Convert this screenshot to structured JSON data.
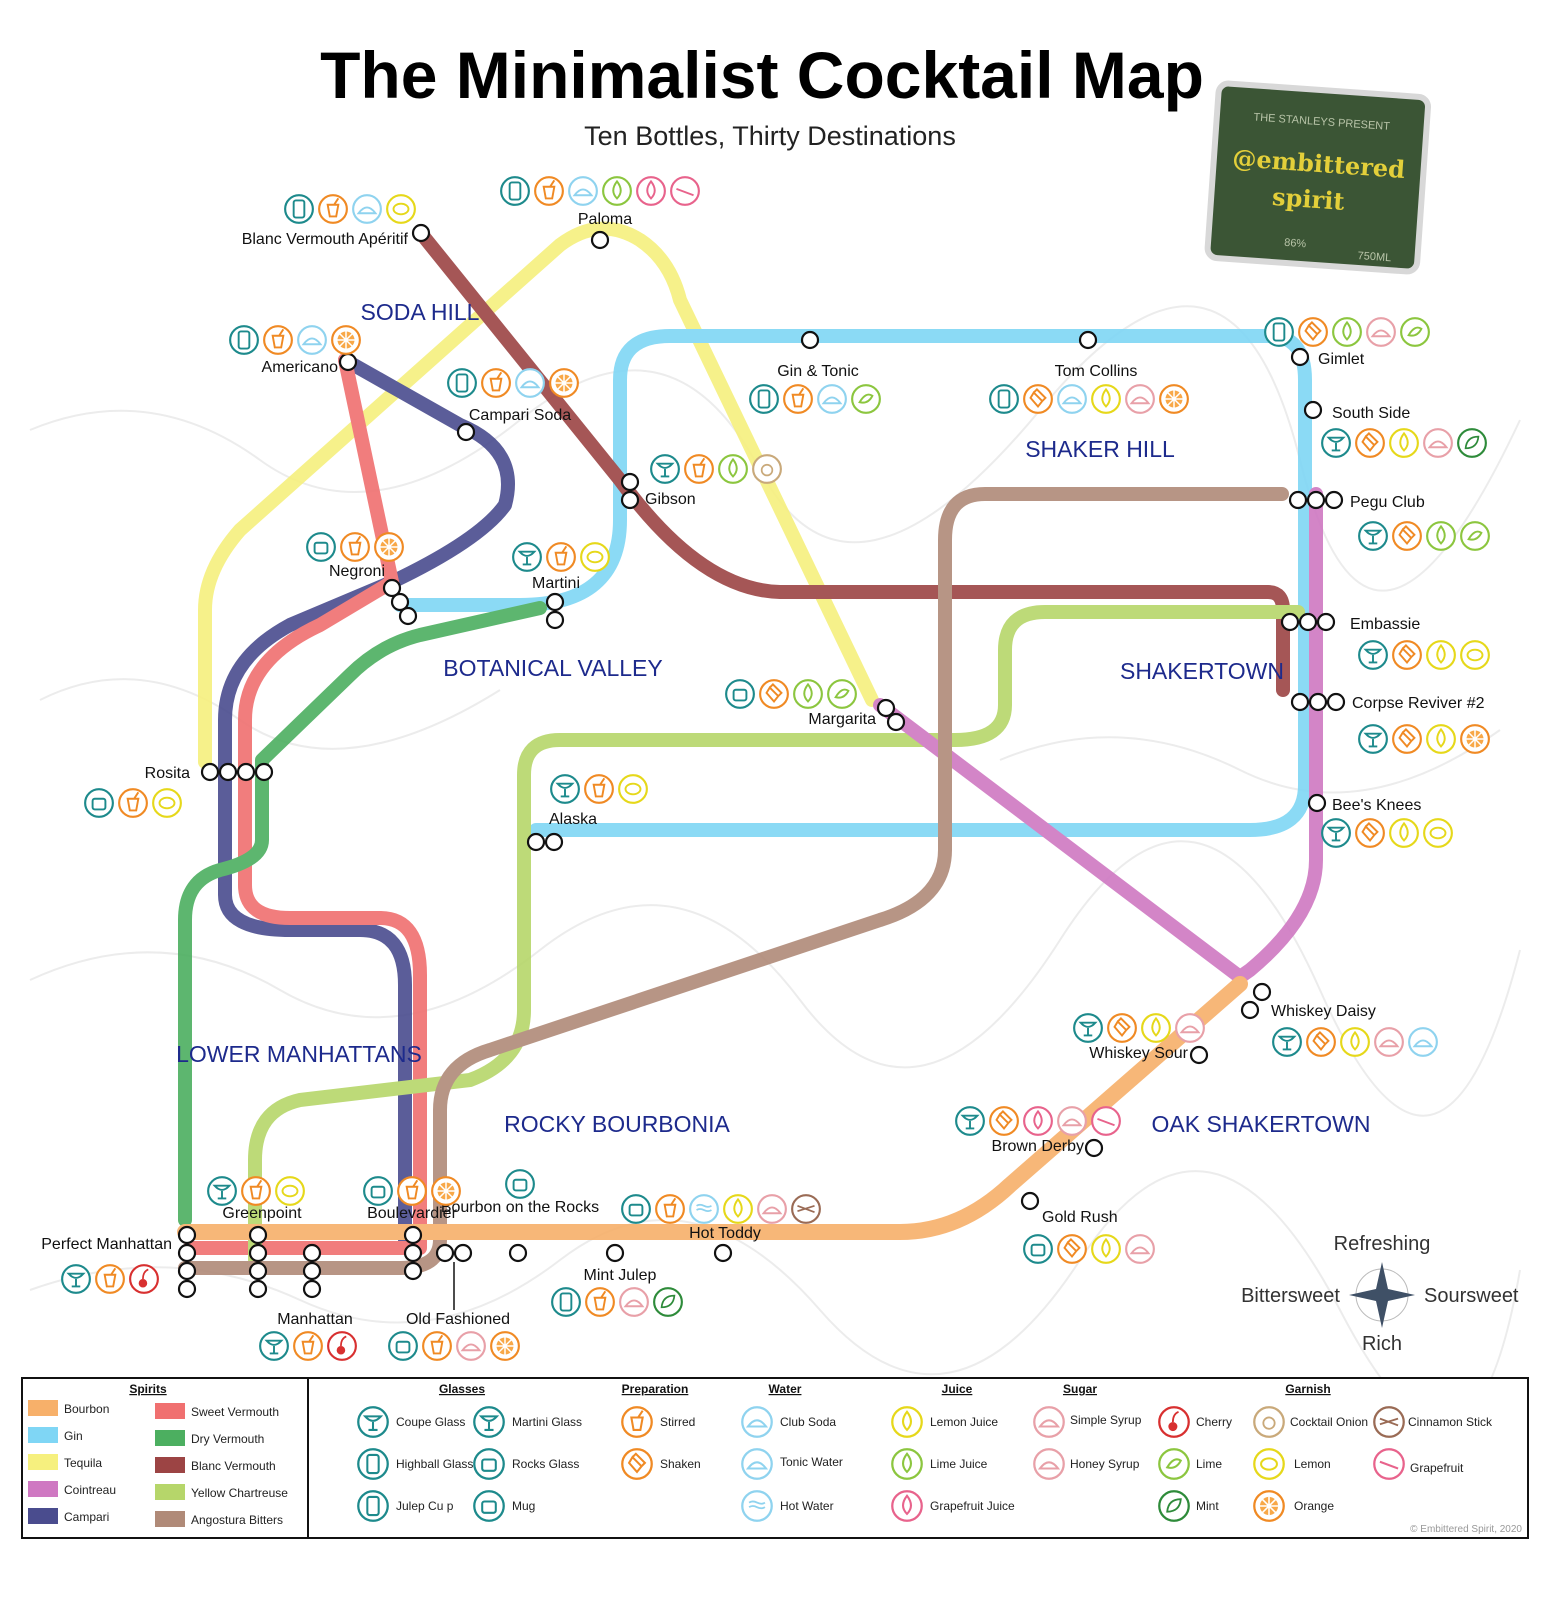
{
  "title": "The Minimalist Cocktail Map",
  "subtitle": "Ten Bottles, Thirty Destinations",
  "badge": {
    "line1": "@embittered",
    "line2": "spirit",
    "small1": "THE STANLEYS PRESENT",
    "small2": "86%",
    "small3": "750ML"
  },
  "colors": {
    "bourbon": "#f7b06a",
    "gin": "#7fd6f5",
    "tequila": "#f6f07e",
    "cointreau": "#cf78c2",
    "campari": "#4a4c8e",
    "sweet_vermouth": "#f07070",
    "dry_vermouth": "#4caf60",
    "blanc_vermouth": "#9c4444",
    "yellow_chartreuse": "#b6d66a",
    "angostura": "#b08a78",
    "region": "#1d2a8c"
  },
  "regions": [
    "SODA HILL",
    "SHAKER HILL",
    "BOTANICAL VALLEY",
    "SHAKERTOWN",
    "LOWER MANHATTANS",
    "ROCKY BOURBONIA",
    "OAK SHAKERTOWN"
  ],
  "stations": [
    "Blanc Vermouth Apéritif",
    "Paloma",
    "Americano",
    "Campari Soda",
    "Gin & Tonic",
    "Tom Collins",
    "Gimlet",
    "South Side",
    "Gibson",
    "Pegu Club",
    "Negroni",
    "Martini",
    "Embassie",
    "Margarita",
    "Corpse Reviver #2",
    "Rosita",
    "Alaska",
    "Bee's Knees",
    "Whiskey Daisy",
    "Whiskey Sour",
    "Brown Derby",
    "Gold Rush",
    "Perfect Manhattan",
    "Greenpoint",
    "Boulevardier",
    "Bourbon on the Rocks",
    "Hot Toddy",
    "Mint Julep",
    "Manhattan",
    "Old Fashioned"
  ],
  "compass": {
    "north": "Refreshing",
    "south": "Rich",
    "west": "Bittersweet",
    "east": "Soursweet"
  },
  "legend": {
    "spirits_title": "Spirits",
    "spirits": [
      "Bourbon",
      "Gin",
      "Tequila",
      "Cointreau",
      "Campari",
      "Sweet Vermouth",
      "Dry Vermouth",
      "Blanc Vermouth",
      "Yellow Chartreuse",
      "Angostura Bitters"
    ],
    "glasses_title": "Glasses",
    "glasses": [
      "Coupe Glass",
      "Highball Glass",
      "Julep Cu p",
      "Martini Glass",
      "Rocks Glass",
      "Mug"
    ],
    "preparation_title": "Preparation",
    "preparation": [
      "Stirred",
      "Shaken"
    ],
    "water_title": "Water",
    "water": [
      "Club Soda",
      "Tonic Water",
      "Hot Water"
    ],
    "juice_title": "Juice",
    "juice": [
      "Lemon Juice",
      "Lime Juice",
      "Grapefruit Juice"
    ],
    "sugar_title": "Sugar",
    "sugar": [
      "Simple Syrup",
      "Honey Syrup"
    ],
    "garnish_title": "Garnish",
    "garnish": [
      "Cherry",
      "Lime",
      "Mint",
      "Cocktail Onion",
      "Lemon",
      "Orange",
      "Cinnamon Stick",
      "Grapefruit"
    ]
  },
  "copyright": "© Embittered Spirit, 2020"
}
